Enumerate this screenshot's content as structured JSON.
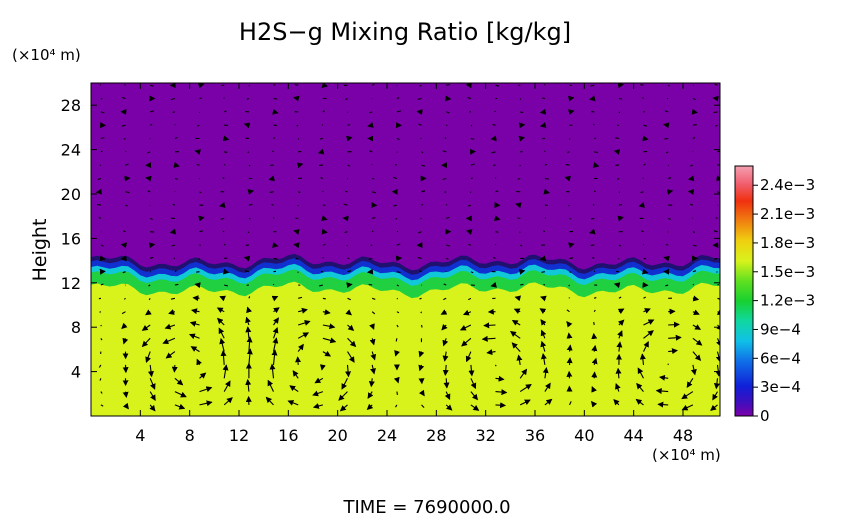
{
  "chart_data": {
    "type": "heatmap",
    "title": "H2S−g Mixing Ratio [kg/kg]",
    "ylabel": "Height",
    "y_unit_label": "(×10⁴ m)",
    "x_unit_label": "(×10⁴ m)",
    "footer": "TIME  =  7690000.0",
    "xlim": [
      0,
      51
    ],
    "ylim": [
      0,
      30
    ],
    "x_ticks": [
      4,
      8,
      12,
      16,
      20,
      24,
      28,
      32,
      36,
      40,
      44,
      48
    ],
    "y_ticks": [
      4,
      8,
      12,
      16,
      20,
      24,
      28
    ],
    "colorbar": {
      "min": 0,
      "max": 0.0026,
      "tick_values": [
        0,
        0.0003,
        0.0006,
        0.0009,
        0.0012,
        0.0015,
        0.0018,
        0.0021,
        0.0024
      ],
      "tick_labels": [
        "0",
        "3e−4",
        "6e−4",
        "9e−4",
        "1.2e−3",
        "1.5e−3",
        "1.8e−3",
        "2.1e−3",
        "2.4e−3"
      ]
    },
    "field_description": {
      "lower_layer_value": 0.0016,
      "upper_layer_value": 0.0,
      "interface_height_approx": 12.8,
      "vortex_centers_x": [
        8,
        18,
        33,
        47
      ],
      "vortex_center_height": 4.5
    },
    "grid": false,
    "legend": "colorbar-right"
  },
  "colors": {
    "background": "#ffffff",
    "upper_fill": "#7a00a8",
    "lower_fill": "#d8f21c",
    "arrow": "#000000"
  }
}
